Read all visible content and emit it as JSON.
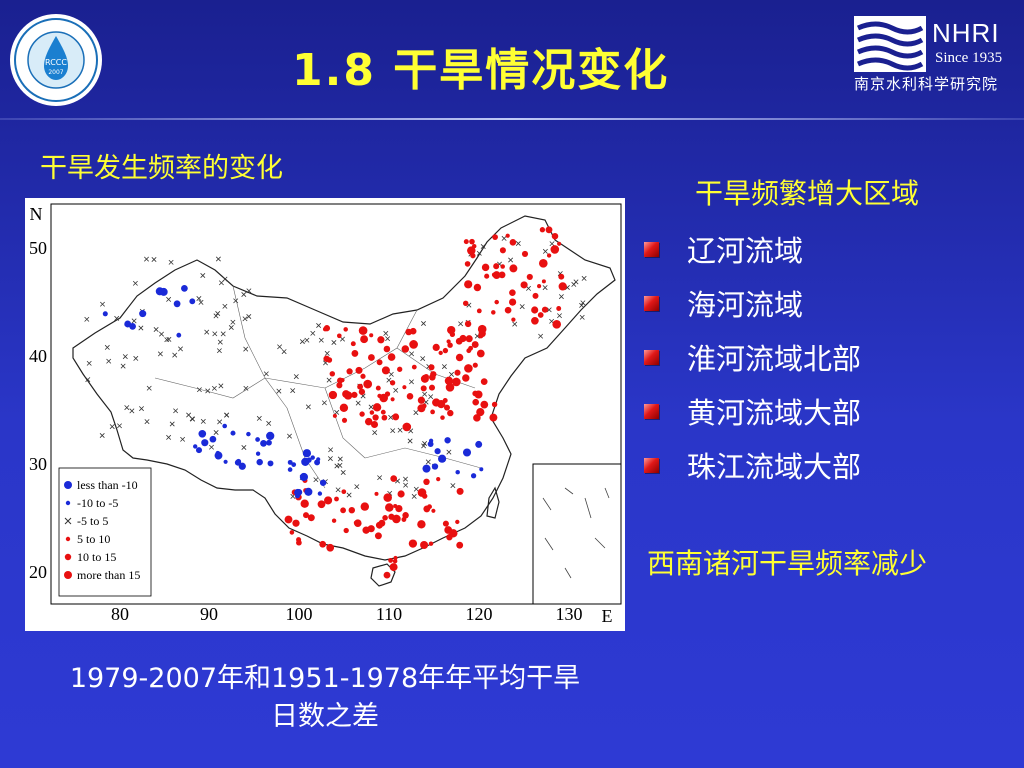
{
  "slide": {
    "title": "1.8  干旱情况变化"
  },
  "logos": {
    "left": {
      "name": "RCCC",
      "year": "2007"
    },
    "right": {
      "abbr": "NHRI",
      "since": "Since 1935",
      "name_cn": "南京水利科学研究院"
    }
  },
  "map_section": {
    "caption": "干旱发生频率的变化",
    "footnote_line1": "1979-2007年和1951-1978年年平均干旱",
    "footnote_line2": "日数之差",
    "axis": {
      "x_ticks": [
        "80",
        "90",
        "100",
        "110",
        "120",
        "130"
      ],
      "y_ticks": [
        "50",
        "40",
        "30",
        "20"
      ],
      "x_label": "E",
      "y_label": "N"
    },
    "legend": [
      {
        "label": "less than -10",
        "color": "#1a2ad8",
        "size": "large"
      },
      {
        "label": "-10  to  -5",
        "color": "#1a2ad8",
        "size": "small"
      },
      {
        "label": "-5  to  5",
        "color": "#333333",
        "size": "cross"
      },
      {
        "label": "5  to  10",
        "color": "#e81010",
        "size": "small"
      },
      {
        "label": "10  to  15",
        "color": "#e81010",
        "size": "medium"
      },
      {
        "label": "more than 15",
        "color": "#e81010",
        "size": "large"
      }
    ]
  },
  "right_panel": {
    "heading": "干旱频繁增大区域",
    "regions": [
      "辽河流域",
      "海河流域",
      "淮河流域北部",
      "黄河流域大部",
      "珠江流域大部"
    ],
    "conclusion": "西南诸河干旱频率减少"
  },
  "colors": {
    "background": "#2a36c8",
    "title": "#ffff33",
    "text": "#ffffff",
    "increase": "#e81010",
    "decrease": "#1a2ad8"
  }
}
